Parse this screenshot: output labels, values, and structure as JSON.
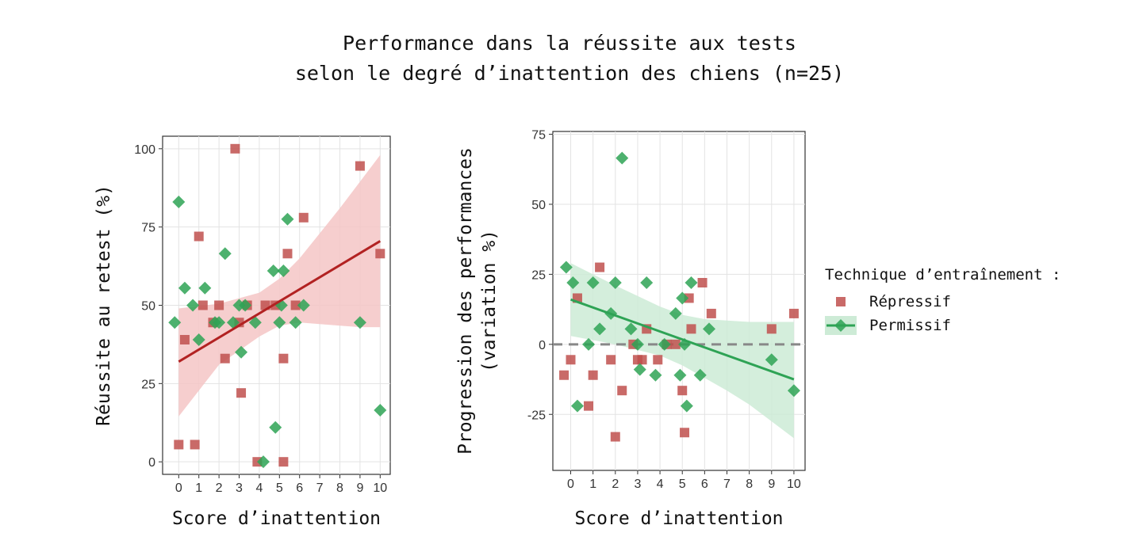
{
  "title": {
    "line1": "Performance dans la réussite aux tests",
    "line2": "selon le degré d’inattention des chiens (n=25)"
  },
  "legend": {
    "title": "Technique d’entraînement :",
    "items": [
      {
        "label": "Répressif",
        "color": "#c0504d",
        "marker": "square"
      },
      {
        "label": "Permissif",
        "color": "#2ea355",
        "marker": "diamond"
      }
    ]
  },
  "chart_data": [
    {
      "type": "scatter",
      "xlabel": "Score d’inattention",
      "ylabel": "Réussite au retest (%)",
      "xlim": [
        -0.8,
        10.5
      ],
      "ylim": [
        -4,
        104
      ],
      "xticks": [
        0,
        1,
        2,
        3,
        4,
        5,
        6,
        7,
        8,
        9,
        10
      ],
      "yticks": [
        0,
        25,
        50,
        75,
        100
      ],
      "grid": true,
      "series": [
        {
          "name": "Répressif",
          "marker": "square",
          "color": "#c0504d",
          "points": [
            [
              0,
              5.5
            ],
            [
              0.3,
              39
            ],
            [
              0.8,
              5.5
            ],
            [
              1,
              72
            ],
            [
              1.2,
              50
            ],
            [
              1.7,
              44.5
            ],
            [
              2,
              50
            ],
            [
              2.3,
              33
            ],
            [
              2.8,
              100
            ],
            [
              3,
              44.5
            ],
            [
              3.1,
              22
            ],
            [
              3.4,
              50
            ],
            [
              3.9,
              0
            ],
            [
              4.3,
              50
            ],
            [
              4.8,
              50
            ],
            [
              5.2,
              33
            ],
            [
              5.2,
              0
            ],
            [
              5.4,
              66.5
            ],
            [
              5.8,
              50
            ],
            [
              6.2,
              78
            ],
            [
              9,
              94.5
            ],
            [
              10,
              66.5
            ]
          ]
        },
        {
          "name": "Permissif",
          "marker": "diamond",
          "color": "#2ea355",
          "points": [
            [
              -0.2,
              44.5
            ],
            [
              0,
              83
            ],
            [
              0.3,
              55.5
            ],
            [
              0.7,
              50
            ],
            [
              1,
              39
            ],
            [
              1.3,
              55.5
            ],
            [
              1.8,
              44.5
            ],
            [
              2,
              44.5
            ],
            [
              2.3,
              66.5
            ],
            [
              2.7,
              44.5
            ],
            [
              3,
              50
            ],
            [
              3.1,
              35
            ],
            [
              3.3,
              50
            ],
            [
              3.8,
              44.5
            ],
            [
              4.2,
              0
            ],
            [
              4.7,
              61
            ],
            [
              4.8,
              11
            ],
            [
              5,
              44.5
            ],
            [
              5.1,
              50
            ],
            [
              5.2,
              61
            ],
            [
              5.4,
              77.5
            ],
            [
              5.8,
              44.5
            ],
            [
              6.2,
              50
            ],
            [
              9,
              44.5
            ],
            [
              10,
              16.5
            ]
          ]
        }
      ],
      "fit": {
        "series": "Répressif",
        "color": "#b22222",
        "band_color": "#f4c6c6",
        "line": [
          [
            0,
            32
          ],
          [
            10,
            70.5
          ]
        ],
        "band_upper": [
          [
            0,
            49
          ],
          [
            2,
            50.5
          ],
          [
            4,
            54
          ],
          [
            5,
            58.5
          ],
          [
            6,
            65
          ],
          [
            7,
            73
          ],
          [
            8,
            81
          ],
          [
            9,
            89.5
          ],
          [
            10,
            98
          ]
        ],
        "band_lower": [
          [
            0,
            14.5
          ],
          [
            2,
            31
          ],
          [
            4,
            40
          ],
          [
            5,
            43.5
          ],
          [
            6,
            44.5
          ],
          [
            7,
            44
          ],
          [
            8,
            43.5
          ],
          [
            9,
            43
          ],
          [
            10,
            43
          ]
        ]
      }
    },
    {
      "type": "scatter",
      "xlabel": "Score d’inattention",
      "ylabel": "Progression des performances (variation %)",
      "ylabel_lines": [
        "Progression des performances",
        "(variation %)"
      ],
      "xlim": [
        -0.8,
        10.5
      ],
      "ylim": [
        -45,
        76
      ],
      "xticks": [
        0,
        1,
        2,
        3,
        4,
        5,
        6,
        7,
        8,
        9,
        10
      ],
      "yticks": [
        -25,
        0,
        25,
        50,
        75
      ],
      "grid": true,
      "reference_line": {
        "y": 0,
        "style": "dashed",
        "color": "#888888"
      },
      "series": [
        {
          "name": "Répressif",
          "marker": "square",
          "color": "#c0504d",
          "points": [
            [
              -0.3,
              -11
            ],
            [
              0,
              -5.5
            ],
            [
              0.3,
              16.5
            ],
            [
              0.8,
              -22
            ],
            [
              1,
              -11
            ],
            [
              1.3,
              27.5
            ],
            [
              1.8,
              -5.5
            ],
            [
              2,
              -33
            ],
            [
              2.3,
              -16.5
            ],
            [
              2.8,
              0
            ],
            [
              3,
              -5.5
            ],
            [
              3.2,
              -5.5
            ],
            [
              3.4,
              5.5
            ],
            [
              3.9,
              -5.5
            ],
            [
              4.3,
              0
            ],
            [
              4.7,
              0
            ],
            [
              5,
              -16.5
            ],
            [
              5.1,
              -31.5
            ],
            [
              5.3,
              16.5
            ],
            [
              5.4,
              5.5
            ],
            [
              5.9,
              22
            ],
            [
              6.3,
              11
            ],
            [
              9,
              5.5
            ],
            [
              10,
              11
            ]
          ]
        },
        {
          "name": "Permissif",
          "marker": "diamond",
          "color": "#2ea355",
          "points": [
            [
              -0.2,
              27.5
            ],
            [
              0.1,
              22
            ],
            [
              0.3,
              -22
            ],
            [
              0.8,
              0
            ],
            [
              1,
              22
            ],
            [
              1.3,
              5.5
            ],
            [
              1.8,
              11
            ],
            [
              2,
              22
            ],
            [
              2.3,
              66.5
            ],
            [
              2.7,
              5.5
            ],
            [
              3,
              0
            ],
            [
              3.1,
              -9
            ],
            [
              3.4,
              22
            ],
            [
              3.8,
              -11
            ],
            [
              4.2,
              0
            ],
            [
              4.7,
              11
            ],
            [
              4.9,
              -11
            ],
            [
              5,
              16.5
            ],
            [
              5.1,
              0
            ],
            [
              5.2,
              -22
            ],
            [
              5.4,
              22
            ],
            [
              5.8,
              -11
            ],
            [
              6.2,
              5.5
            ],
            [
              9,
              -5.5
            ],
            [
              10,
              -16.5
            ]
          ]
        }
      ],
      "fit": {
        "series": "Permissif",
        "color": "#2ea355",
        "band_color": "#cdebd6",
        "line": [
          [
            0,
            16
          ],
          [
            10,
            -12.5
          ]
        ],
        "band_upper": [
          [
            0,
            29
          ],
          [
            2,
            21
          ],
          [
            4,
            13.5
          ],
          [
            5,
            10.5
          ],
          [
            6,
            9
          ],
          [
            7,
            8.5
          ],
          [
            8,
            8
          ],
          [
            9,
            8
          ],
          [
            10,
            8
          ]
        ],
        "band_lower": [
          [
            0,
            3
          ],
          [
            2,
            0
          ],
          [
            4,
            -4
          ],
          [
            5,
            -7.5
          ],
          [
            6,
            -12
          ],
          [
            7,
            -16.5
          ],
          [
            8,
            -21.5
          ],
          [
            9,
            -27.5
          ],
          [
            10,
            -33.5
          ]
        ]
      }
    }
  ]
}
